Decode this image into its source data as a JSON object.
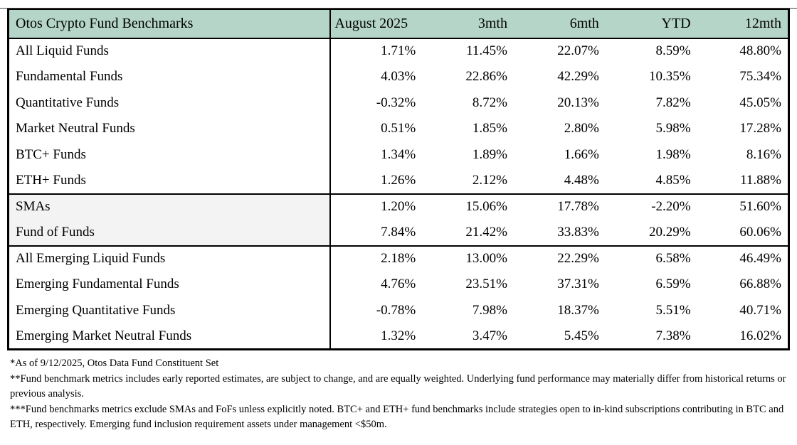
{
  "table": {
    "title": "Otos Crypto Fund Benchmarks",
    "columns": [
      "August 2025",
      "3mth",
      "6mth",
      "YTD",
      "12mth"
    ],
    "sections": [
      {
        "name": "all-funds",
        "shaded_labels": false,
        "rows": [
          {
            "label": "All Liquid Funds",
            "values": [
              "1.71%",
              "11.45%",
              "22.07%",
              "8.59%",
              "48.80%"
            ]
          },
          {
            "label": "Fundamental Funds",
            "values": [
              "4.03%",
              "22.86%",
              "42.29%",
              "10.35%",
              "75.34%"
            ]
          },
          {
            "label": "Quantitative Funds",
            "values": [
              "-0.32%",
              "8.72%",
              "20.13%",
              "7.82%",
              "45.05%"
            ]
          },
          {
            "label": "Market Neutral Funds",
            "values": [
              "0.51%",
              "1.85%",
              "2.80%",
              "5.98%",
              "17.28%"
            ]
          },
          {
            "label": "BTC+ Funds",
            "values": [
              "1.34%",
              "1.89%",
              "1.66%",
              "1.98%",
              "8.16%"
            ]
          },
          {
            "label": "ETH+ Funds",
            "values": [
              "1.26%",
              "2.12%",
              "4.48%",
              "4.85%",
              "11.88%"
            ]
          }
        ]
      },
      {
        "name": "smas-fofs",
        "shaded_labels": true,
        "rows": [
          {
            "label": "SMAs",
            "values": [
              "1.20%",
              "15.06%",
              "17.78%",
              "-2.20%",
              "51.60%"
            ]
          },
          {
            "label": "Fund of Funds",
            "values": [
              "7.84%",
              "21.42%",
              "33.83%",
              "20.29%",
              "60.06%"
            ]
          }
        ]
      },
      {
        "name": "emerging-funds",
        "shaded_labels": false,
        "rows": [
          {
            "label": "All Emerging Liquid Funds",
            "values": [
              "2.18%",
              "13.00%",
              "22.29%",
              "6.58%",
              "46.49%"
            ]
          },
          {
            "label": "Emerging Fundamental Funds",
            "values": [
              "4.76%",
              "23.51%",
              "37.31%",
              "6.59%",
              "66.88%"
            ]
          },
          {
            "label": "Emerging Quantitative Funds",
            "values": [
              "-0.78%",
              "7.98%",
              "18.37%",
              "5.51%",
              "40.71%"
            ]
          },
          {
            "label": "Emerging Market Neutral Funds",
            "values": [
              "1.32%",
              "3.47%",
              "5.45%",
              "7.38%",
              "16.02%"
            ]
          }
        ]
      }
    ]
  },
  "footnotes": [
    "*As of 9/12/2025, Otos Data Fund Constituent Set",
    "**Fund benchmark metrics includes early reported estimates, are subject to change, and are equally weighted. Underlying fund performance may materially differ from historical returns or previous analysis.",
    "***Fund benchmarks metrics exclude SMAs and FoFs unless explicitly noted. BTC+ and ETH+ fund benchmarks include strategies open to in-kind subscriptions contributing in BTC and ETH, respectively. Emerging fund inclusion requirement assets under management <$50m."
  ],
  "colors": {
    "header_bg": "#b5d5c8",
    "shaded_label_bg": "#f3f3f3",
    "border": "#000000",
    "text": "#000000"
  },
  "chart_data": {
    "type": "table",
    "title": "Otos Crypto Fund Benchmarks",
    "columns": [
      "August 2025",
      "3mth",
      "6mth",
      "YTD",
      "12mth"
    ],
    "rows": [
      {
        "label": "All Liquid Funds",
        "values": [
          1.71,
          11.45,
          22.07,
          8.59,
          48.8
        ]
      },
      {
        "label": "Fundamental Funds",
        "values": [
          4.03,
          22.86,
          42.29,
          10.35,
          75.34
        ]
      },
      {
        "label": "Quantitative Funds",
        "values": [
          -0.32,
          8.72,
          20.13,
          7.82,
          45.05
        ]
      },
      {
        "label": "Market Neutral Funds",
        "values": [
          0.51,
          1.85,
          2.8,
          5.98,
          17.28
        ]
      },
      {
        "label": "BTC+ Funds",
        "values": [
          1.34,
          1.89,
          1.66,
          1.98,
          8.16
        ]
      },
      {
        "label": "ETH+ Funds",
        "values": [
          1.26,
          2.12,
          4.48,
          4.85,
          11.88
        ]
      },
      {
        "label": "SMAs",
        "values": [
          1.2,
          15.06,
          17.78,
          -2.2,
          51.6
        ]
      },
      {
        "label": "Fund of Funds",
        "values": [
          7.84,
          21.42,
          33.83,
          20.29,
          60.06
        ]
      },
      {
        "label": "All Emerging Liquid Funds",
        "values": [
          2.18,
          13.0,
          22.29,
          6.58,
          46.49
        ]
      },
      {
        "label": "Emerging Fundamental Funds",
        "values": [
          4.76,
          23.51,
          37.31,
          6.59,
          66.88
        ]
      },
      {
        "label": "Emerging Quantitative Funds",
        "values": [
          -0.78,
          7.98,
          18.37,
          5.51,
          40.71
        ]
      },
      {
        "label": "Emerging Market Neutral Funds",
        "values": [
          1.32,
          3.47,
          5.45,
          7.38,
          16.02
        ]
      }
    ],
    "units": "percent"
  }
}
